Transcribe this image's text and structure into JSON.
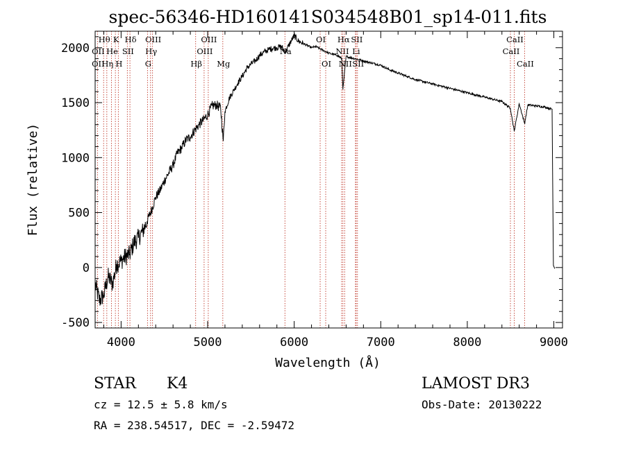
{
  "chart_data": {
    "type": "line",
    "title": "spec-56346-HD160141S034548B01_sp14-011.fits",
    "xlabel": "Wavelength (Å)",
    "ylabel": "Flux (relative)",
    "xlim": [
      3700,
      9100
    ],
    "ylim": [
      -550,
      2150
    ],
    "xticks": [
      4000,
      5000,
      6000,
      7000,
      8000,
      9000
    ],
    "yticks": [
      -500,
      0,
      500,
      1000,
      1500,
      2000
    ],
    "series": [
      {
        "x": [
          3700,
          3750,
          3800,
          3850,
          3900,
          3950,
          4000,
          4050,
          4100,
          4150,
          4200,
          4250,
          4300,
          4350,
          4400,
          4450,
          4500,
          4550,
          4600,
          4650,
          4700,
          4750,
          4800,
          4850,
          4900,
          4950,
          5000,
          5050,
          5100,
          5150,
          5180,
          5200,
          5250,
          5300,
          5350,
          5400,
          5450,
          5500,
          5550,
          5600,
          5650,
          5700,
          5750,
          5800,
          5850,
          5900,
          5950,
          6000,
          6050,
          6100,
          6150,
          6200,
          6250,
          6300,
          6350,
          6400,
          6450,
          6500,
          6550,
          6563,
          6600,
          6650,
          6700,
          6750,
          6800,
          6900,
          7000,
          7100,
          7200,
          7300,
          7400,
          7500,
          7600,
          7700,
          7800,
          7900,
          8000,
          8100,
          8200,
          8300,
          8400,
          8498,
          8542,
          8600,
          8662,
          8700,
          8800,
          8900,
          8980,
          8985,
          8995,
          9010
        ],
        "y": [
          -150,
          -300,
          -250,
          -80,
          -150,
          30,
          60,
          100,
          120,
          230,
          270,
          330,
          420,
          520,
          640,
          700,
          790,
          860,
          930,
          1040,
          1090,
          1160,
          1190,
          1250,
          1300,
          1340,
          1390,
          1470,
          1480,
          1450,
          1150,
          1420,
          1540,
          1610,
          1680,
          1740,
          1810,
          1850,
          1880,
          1930,
          1960,
          1980,
          1995,
          2000,
          2010,
          1960,
          2040,
          2110,
          2060,
          2040,
          2020,
          2000,
          2010,
          1990,
          1970,
          1950,
          1940,
          1930,
          1900,
          1620,
          1920,
          1910,
          1900,
          1890,
          1880,
          1860,
          1840,
          1800,
          1770,
          1740,
          1710,
          1690,
          1670,
          1650,
          1630,
          1610,
          1590,
          1570,
          1550,
          1530,
          1510,
          1450,
          1240,
          1490,
          1310,
          1480,
          1470,
          1460,
          1440,
          900,
          20,
          -10
        ]
      }
    ],
    "line_markers": [
      {
        "label": "Hθ",
        "x": 3798,
        "row": 1
      },
      {
        "label": "OII",
        "x": 3727,
        "row": 2
      },
      {
        "label": "OII",
        "x": 3727,
        "row": 3
      },
      {
        "label": "K",
        "x": 3934,
        "row": 1
      },
      {
        "label": "He",
        "x": 3889,
        "row": 2
      },
      {
        "label": "Hη",
        "x": 3835,
        "row": 3
      },
      {
        "label": "Hδ",
        "x": 4102,
        "row": 1
      },
      {
        "label": "SII",
        "x": 4072,
        "row": 2
      },
      {
        "label": "H",
        "x": 3968,
        "row": 3
      },
      {
        "label": "OIII",
        "x": 4363,
        "row": 1
      },
      {
        "label": "Hγ",
        "x": 4340,
        "row": 2
      },
      {
        "label": "G",
        "x": 4305,
        "row": 3
      },
      {
        "label": "OIII",
        "x": 5007,
        "row": 1
      },
      {
        "label": "OIII",
        "x": 4959,
        "row": 2
      },
      {
        "label": "Hβ",
        "x": 4861,
        "row": 3
      },
      {
        "label": "Mg",
        "x": 5175,
        "row": 3
      },
      {
        "label": "Na",
        "x": 5893,
        "row": 2
      },
      {
        "label": "OI",
        "x": 6300,
        "row": 1
      },
      {
        "label": "OI",
        "x": 6364,
        "row": 3
      },
      {
        "label": "Hα",
        "x": 6563,
        "row": 1
      },
      {
        "label": "SII",
        "x": 6716,
        "row": 1
      },
      {
        "label": "NII",
        "x": 6548,
        "row": 2
      },
      {
        "label": "Li",
        "x": 6708,
        "row": 2
      },
      {
        "label": "NII",
        "x": 6583,
        "row": 3
      },
      {
        "label": "SII",
        "x": 6731,
        "row": 3
      },
      {
        "label": "CaII",
        "x": 8542,
        "row": 1
      },
      {
        "label": "CaII",
        "x": 8498,
        "row": 2
      },
      {
        "label": "CaII",
        "x": 8662,
        "row": 3
      }
    ]
  },
  "info": {
    "class": "STAR",
    "subclass": "K4",
    "survey": "LAMOST DR3",
    "cz": "cz = 12.5 ± 5.8 km/s",
    "obs_date": "Obs-Date: 20130222",
    "coords": "RA = 238.54517, DEC =  -2.59472"
  }
}
